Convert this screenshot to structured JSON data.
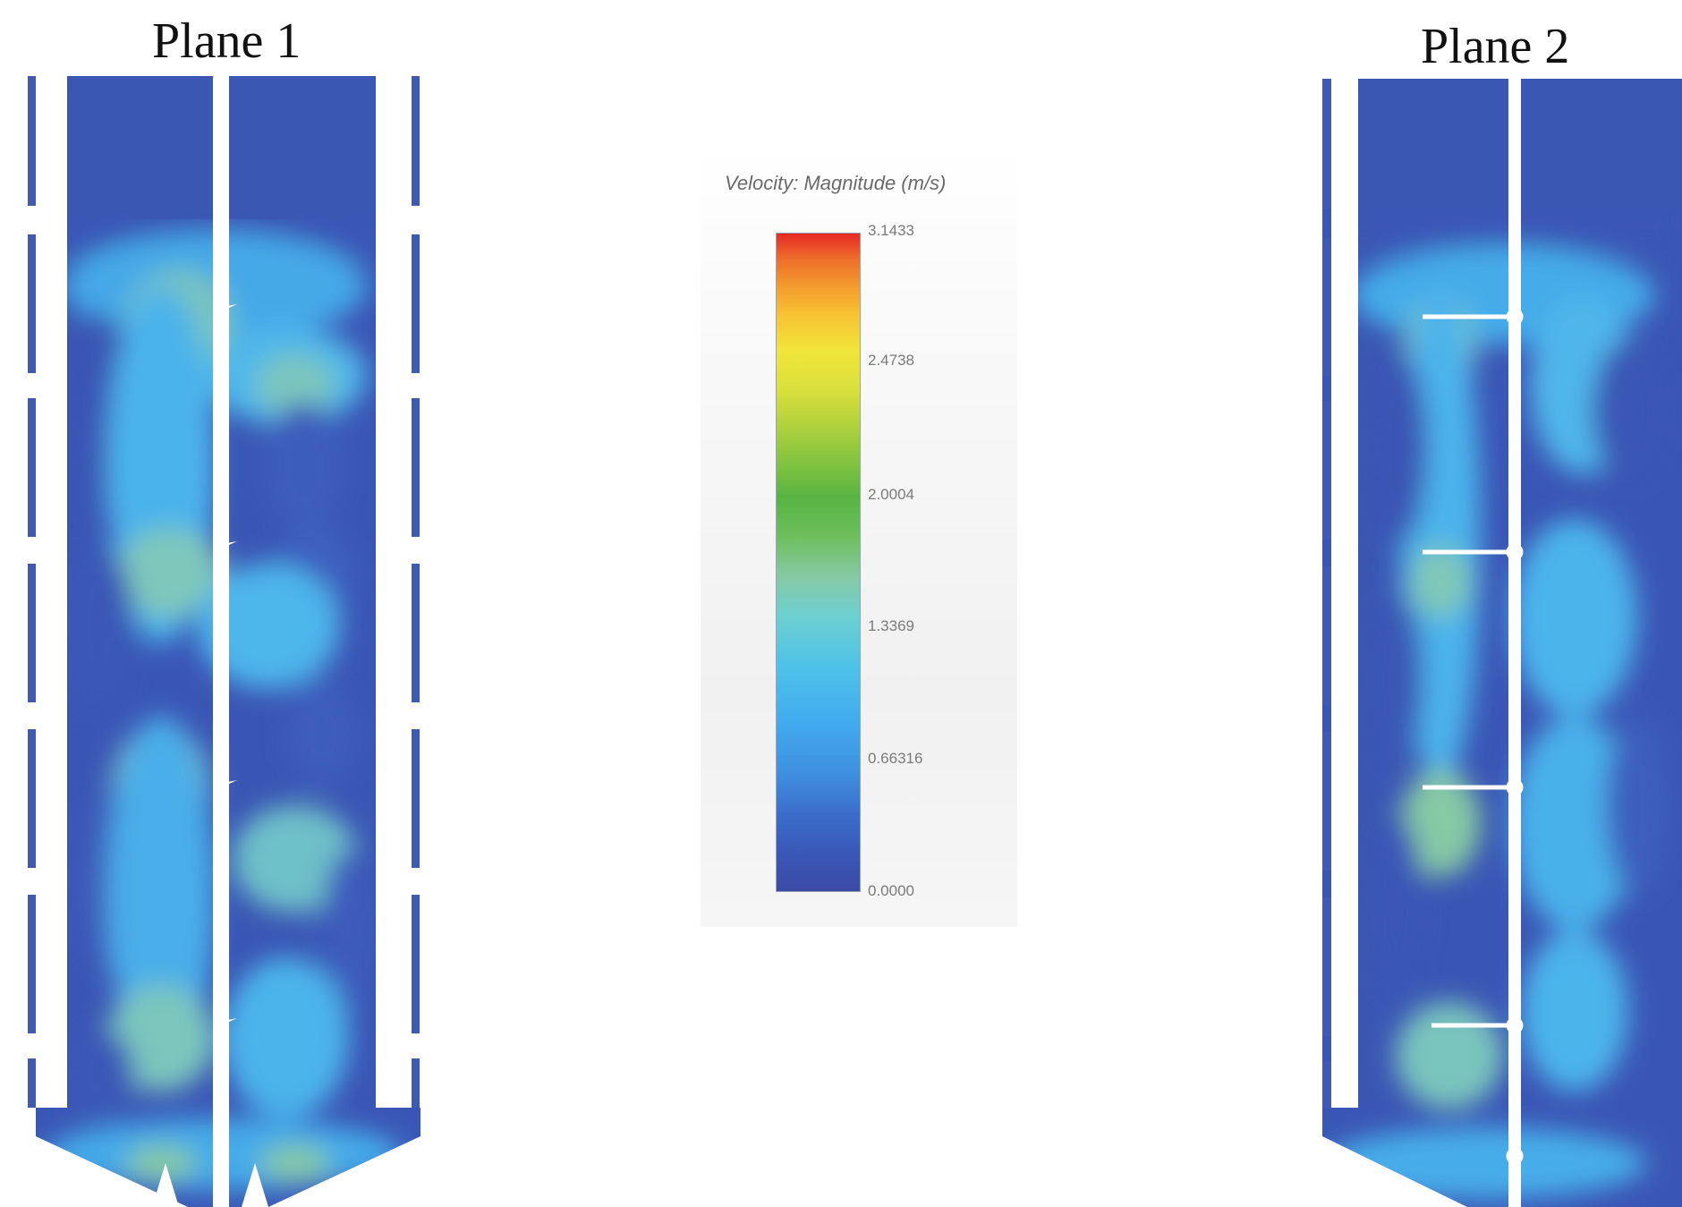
{
  "plane1": {
    "title": "Plane 1"
  },
  "plane2": {
    "title": "Plane 2"
  },
  "legend": {
    "title": "Velocity: Magnitude (m/s)",
    "ticks": [
      "3.1433",
      "2.4738",
      "2.0004",
      "1.3369",
      "0.66316",
      "0.0000"
    ],
    "scale_min": 0.0,
    "scale_max": 3.1433,
    "colors": [
      "#3c4aa5",
      "#3b6fcc",
      "#42acee",
      "#86c9a2",
      "#58b442",
      "#f1e63a",
      "#f49b2e",
      "#e62a25"
    ]
  },
  "field_colors": {
    "low": "#3a56b4",
    "mid_low": "#3f8ddf",
    "mid": "#4fb8ec",
    "high": "#86c9a8",
    "wall": "#ffffff"
  }
}
